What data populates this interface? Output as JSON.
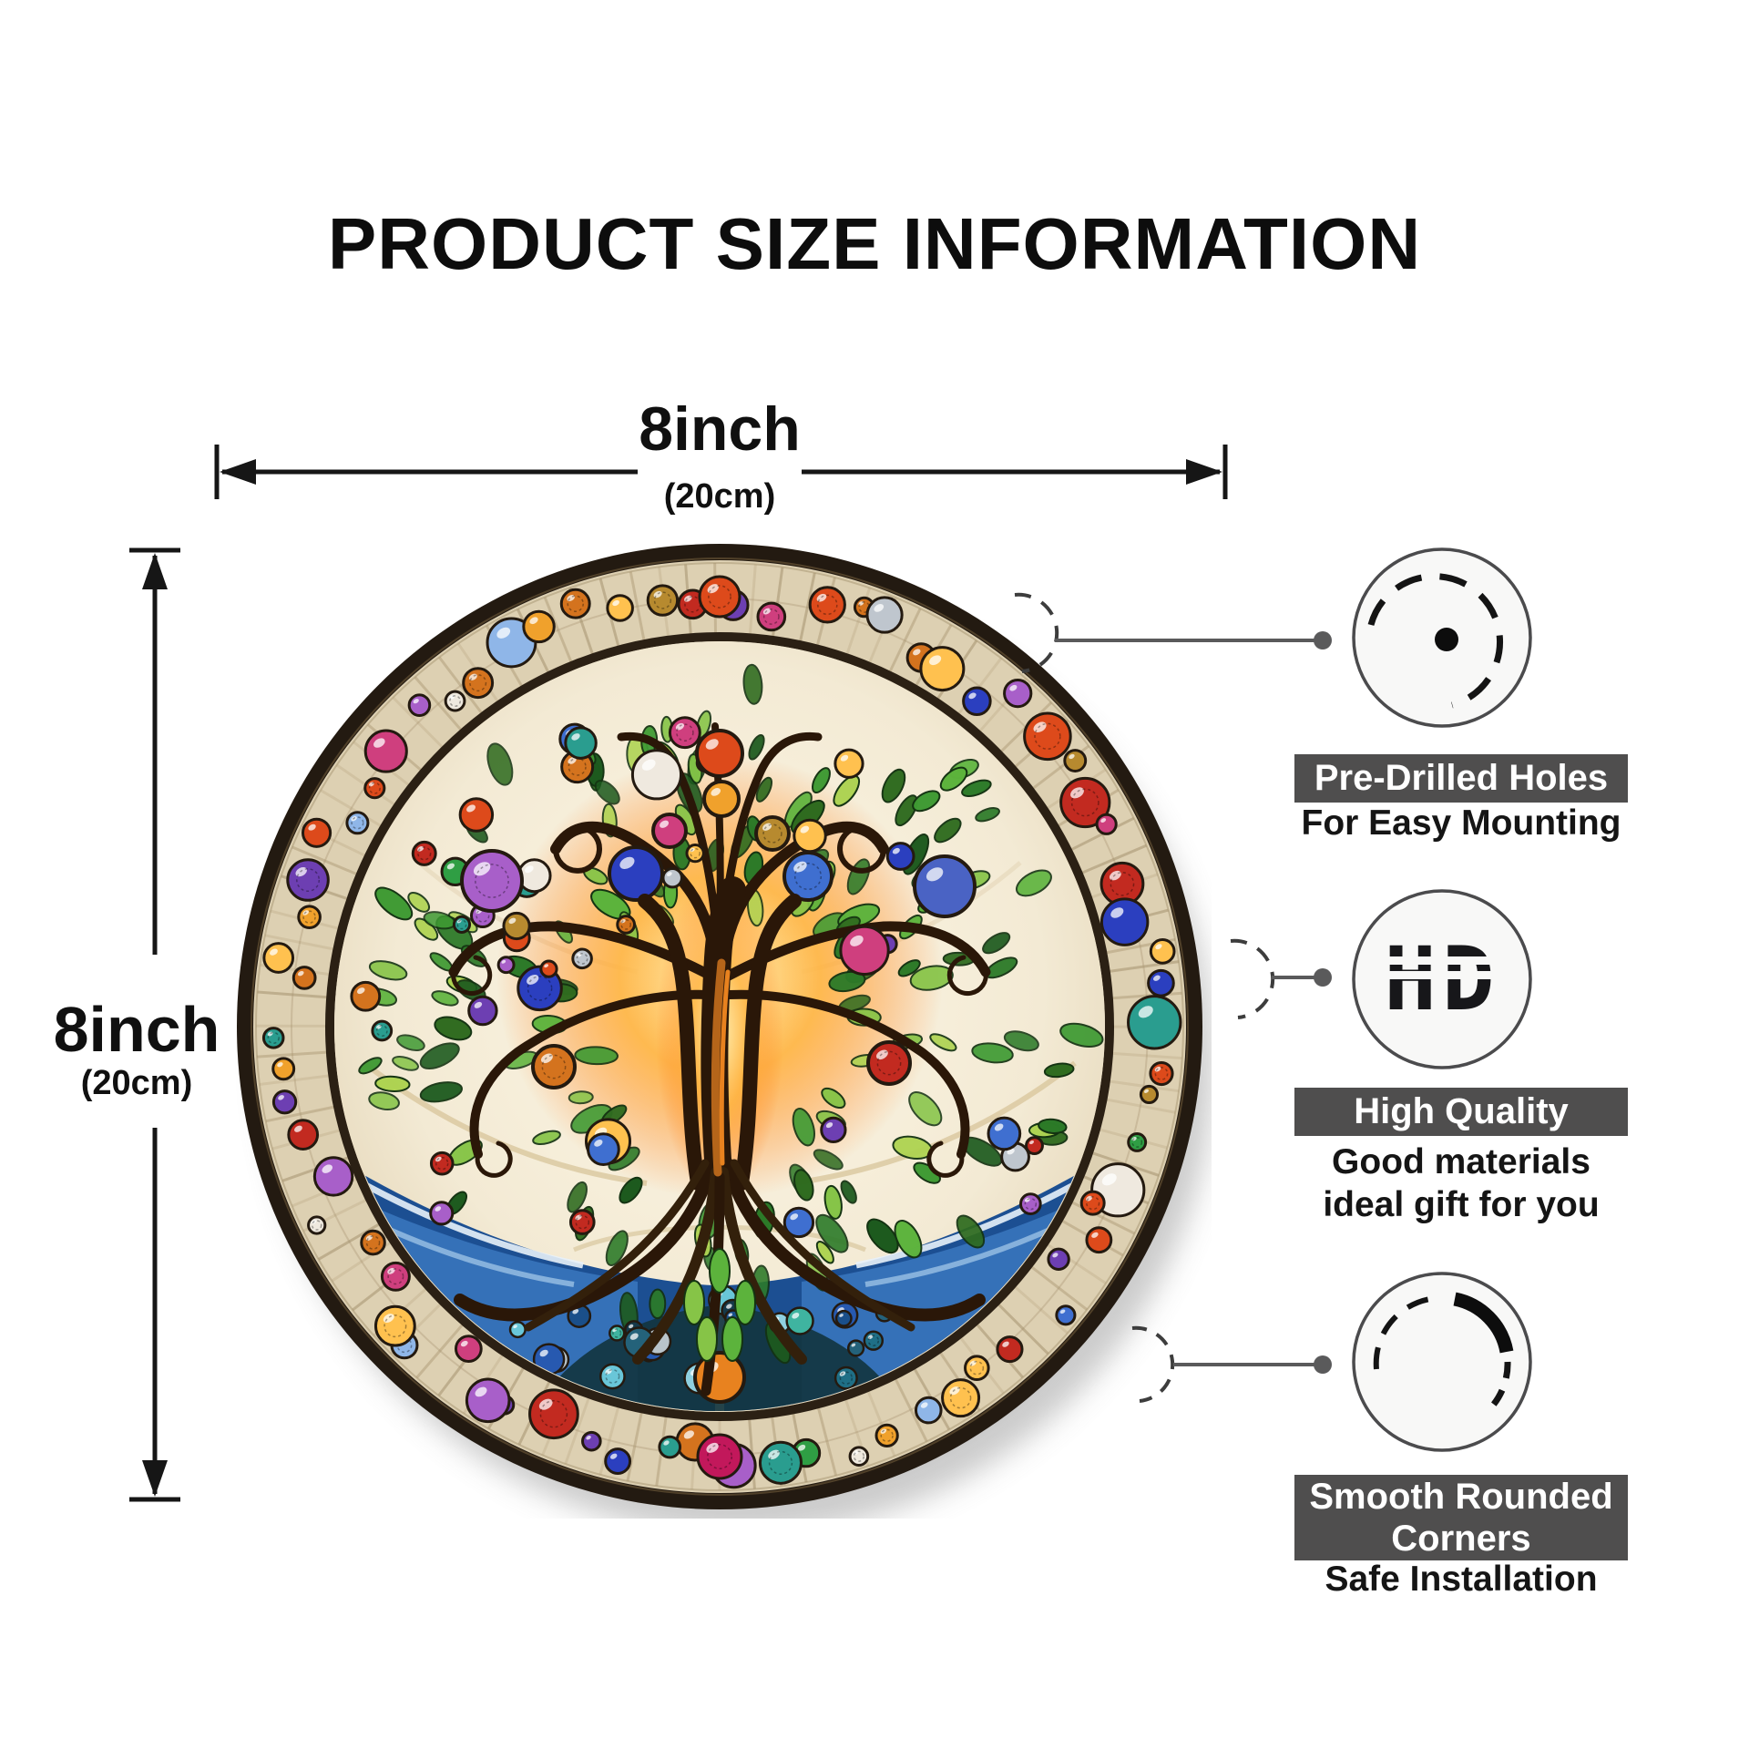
{
  "title": "PRODUCT SIZE INFORMATION",
  "dimensions": {
    "width": {
      "value": "8inch",
      "metric": "(20cm)"
    },
    "height": {
      "value": "8inch",
      "metric": "(20cm)"
    }
  },
  "features": [
    {
      "heading": "Pre-Drilled Holes",
      "subtext": "For Easy Mounting",
      "icon": "pre-drilled-hole-icon"
    },
    {
      "heading": "High Quality",
      "subtext": "Good materials\nideal gift for you",
      "icon": "hd-icon",
      "icon_text": "HD"
    },
    {
      "heading": "Smooth Rounded Corners",
      "subtext": "Safe Installation",
      "icon": "rounded-corner-icon"
    }
  ],
  "artwork": {
    "colors": {
      "bar_bg": "#4f4e4e",
      "annotation_line": "#5a5a5b",
      "rim": "#231a11",
      "border_bg": "#ddd0b2",
      "inner_cream": "#f6eedb",
      "glow": "#ffb340",
      "water_deep": "#1c4f92",
      "water_mid": "#3c79c2",
      "water_foam": "#e8f1fa"
    },
    "gem_palette": [
      "#d4731e",
      "#f0a12c",
      "#ffc14f",
      "#dd4a1b",
      "#c22a20",
      "#cf3f7e",
      "#a85fc9",
      "#6d3fb2",
      "#2b3fbf",
      "#3f6fd0",
      "#8fb6e8",
      "#2a9d8f",
      "#2f9e44",
      "#bfc6ce",
      "#efe9df",
      "#b78a2f"
    ],
    "leaf_palette": [
      "#1d5a1e",
      "#2c7a28",
      "#3f9a33",
      "#5cb33c",
      "#86c447",
      "#aed352",
      "#2f6b1f"
    ],
    "bed_palette": [
      "#1f6f86",
      "#2b9db5",
      "#1a4f8a",
      "#3fb4a0",
      "#69c6d8",
      "#24627a",
      "#8fd0e0",
      "#b9c4ca",
      "#2759b0",
      "#15394a"
    ]
  }
}
